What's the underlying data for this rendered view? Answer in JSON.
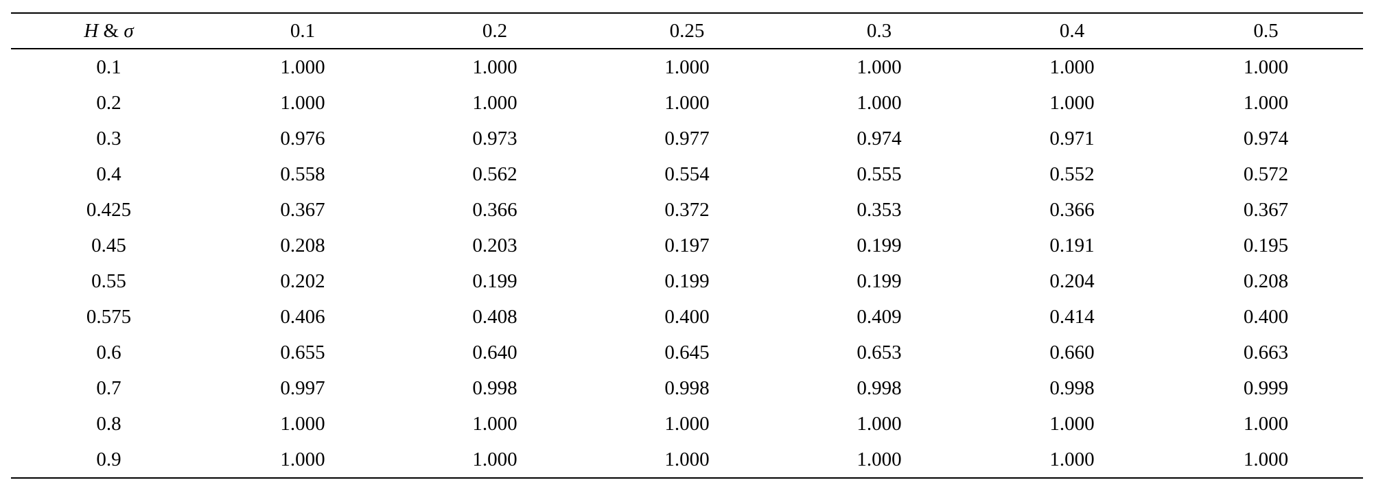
{
  "table": {
    "corner": {
      "var1": "H",
      "sep": "&",
      "var2": "σ"
    },
    "columns": [
      "0.1",
      "0.2",
      "0.25",
      "0.3",
      "0.4",
      "0.5"
    ],
    "rows": [
      {
        "label": "0.1",
        "values": [
          "1.000",
          "1.000",
          "1.000",
          "1.000",
          "1.000",
          "1.000"
        ]
      },
      {
        "label": "0.2",
        "values": [
          "1.000",
          "1.000",
          "1.000",
          "1.000",
          "1.000",
          "1.000"
        ]
      },
      {
        "label": "0.3",
        "values": [
          "0.976",
          "0.973",
          "0.977",
          "0.974",
          "0.971",
          "0.974"
        ]
      },
      {
        "label": "0.4",
        "values": [
          "0.558",
          "0.562",
          "0.554",
          "0.555",
          "0.552",
          "0.572"
        ]
      },
      {
        "label": "0.425",
        "values": [
          "0.367",
          "0.366",
          "0.372",
          "0.353",
          "0.366",
          "0.367"
        ]
      },
      {
        "label": "0.45",
        "values": [
          "0.208",
          "0.203",
          "0.197",
          "0.199",
          "0.191",
          "0.195"
        ]
      },
      {
        "label": "0.55",
        "values": [
          "0.202",
          "0.199",
          "0.199",
          "0.199",
          "0.204",
          "0.208"
        ]
      },
      {
        "label": "0.575",
        "values": [
          "0.406",
          "0.408",
          "0.400",
          "0.409",
          "0.414",
          "0.400"
        ]
      },
      {
        "label": "0.6",
        "values": [
          "0.655",
          "0.640",
          "0.645",
          "0.653",
          "0.660",
          "0.663"
        ]
      },
      {
        "label": "0.7",
        "values": [
          "0.997",
          "0.998",
          "0.998",
          "0.998",
          "0.998",
          "0.999"
        ]
      },
      {
        "label": "0.8",
        "values": [
          "1.000",
          "1.000",
          "1.000",
          "1.000",
          "1.000",
          "1.000"
        ]
      },
      {
        "label": "0.9",
        "values": [
          "1.000",
          "1.000",
          "1.000",
          "1.000",
          "1.000",
          "1.000"
        ]
      }
    ]
  }
}
